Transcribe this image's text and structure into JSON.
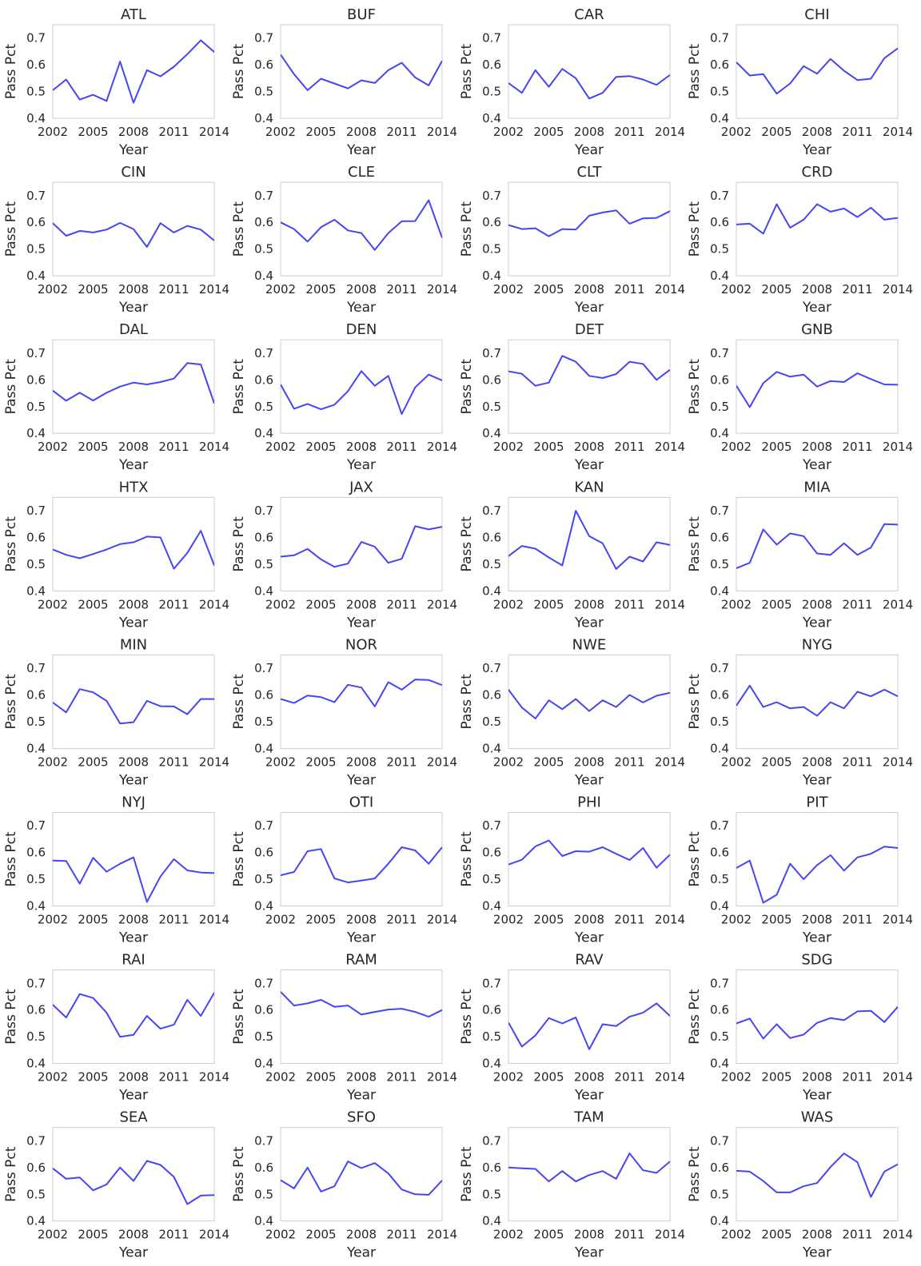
{
  "chart_data": {
    "type": "line",
    "layout": "small-multiples 8 rows x 4 columns",
    "xlabel": "Year",
    "ylabel": "Pass Pct",
    "xlim": [
      2002,
      2014
    ],
    "ylim": [
      0.4,
      0.75
    ],
    "xticks": [
      "2002",
      "2005",
      "2008",
      "2011",
      "2014"
    ],
    "yticks": [
      "0.4",
      "0.5",
      "0.6",
      "0.7"
    ],
    "grid": false,
    "line_color": "#4545f5",
    "x": [
      2002,
      2003,
      2004,
      2005,
      2006,
      2007,
      2008,
      2009,
      2010,
      2011,
      2012,
      2013,
      2014
    ],
    "panels": [
      {
        "title": "ATL",
        "values": [
          0.505,
          0.545,
          0.47,
          0.488,
          0.465,
          0.612,
          0.458,
          0.58,
          0.557,
          0.593,
          0.64,
          0.692,
          0.648
        ]
      },
      {
        "title": "BUF",
        "values": [
          0.638,
          0.565,
          0.505,
          0.548,
          0.53,
          0.512,
          0.542,
          0.532,
          0.58,
          0.608,
          0.553,
          0.523,
          0.615
        ]
      },
      {
        "title": "CAR",
        "values": [
          0.532,
          0.495,
          0.58,
          0.518,
          0.585,
          0.55,
          0.474,
          0.495,
          0.555,
          0.558,
          0.545,
          0.525,
          0.562
        ]
      },
      {
        "title": "CHI",
        "values": [
          0.61,
          0.56,
          0.565,
          0.492,
          0.53,
          0.595,
          0.567,
          0.622,
          0.578,
          0.543,
          0.548,
          0.625,
          0.662
        ]
      },
      {
        "title": "CIN",
        "values": [
          0.597,
          0.55,
          0.568,
          0.562,
          0.573,
          0.598,
          0.575,
          0.508,
          0.597,
          0.562,
          0.587,
          0.573,
          0.532
        ]
      },
      {
        "title": "CLE",
        "values": [
          0.6,
          0.575,
          0.528,
          0.582,
          0.61,
          0.57,
          0.56,
          0.497,
          0.56,
          0.604,
          0.605,
          0.683,
          0.542
        ]
      },
      {
        "title": "CLT",
        "values": [
          0.59,
          0.575,
          0.578,
          0.548,
          0.575,
          0.573,
          0.625,
          0.637,
          0.645,
          0.595,
          0.615,
          0.617,
          0.642
        ]
      },
      {
        "title": "CRD",
        "values": [
          0.592,
          0.595,
          0.558,
          0.668,
          0.58,
          0.61,
          0.668,
          0.64,
          0.652,
          0.62,
          0.655,
          0.61,
          0.617
        ]
      },
      {
        "title": "DAL",
        "values": [
          0.56,
          0.522,
          0.552,
          0.523,
          0.552,
          0.575,
          0.59,
          0.583,
          0.592,
          0.605,
          0.663,
          0.658,
          0.512
        ]
      },
      {
        "title": "DEN",
        "values": [
          0.583,
          0.492,
          0.51,
          0.49,
          0.507,
          0.558,
          0.633,
          0.578,
          0.615,
          0.472,
          0.572,
          0.62,
          0.598
        ]
      },
      {
        "title": "DET",
        "values": [
          0.632,
          0.623,
          0.578,
          0.59,
          0.69,
          0.668,
          0.615,
          0.607,
          0.622,
          0.668,
          0.66,
          0.6,
          0.638
        ]
      },
      {
        "title": "GNB",
        "values": [
          0.578,
          0.498,
          0.588,
          0.63,
          0.612,
          0.62,
          0.575,
          0.596,
          0.592,
          0.625,
          0.603,
          0.583,
          0.582
        ]
      },
      {
        "title": "HTX",
        "values": [
          0.555,
          0.535,
          0.522,
          0.538,
          0.555,
          0.575,
          0.582,
          0.603,
          0.6,
          0.483,
          0.542,
          0.625,
          0.495
        ]
      },
      {
        "title": "JAX",
        "values": [
          0.528,
          0.533,
          0.557,
          0.518,
          0.49,
          0.502,
          0.583,
          0.565,
          0.505,
          0.52,
          0.642,
          0.63,
          0.64
        ]
      },
      {
        "title": "KAN",
        "values": [
          0.53,
          0.568,
          0.558,
          0.525,
          0.495,
          0.7,
          0.605,
          0.578,
          0.482,
          0.528,
          0.51,
          0.582,
          0.572
        ]
      },
      {
        "title": "MIA",
        "values": [
          0.485,
          0.505,
          0.63,
          0.573,
          0.615,
          0.605,
          0.54,
          0.535,
          0.578,
          0.535,
          0.562,
          0.65,
          0.648
        ]
      },
      {
        "title": "MIN",
        "values": [
          0.572,
          0.535,
          0.622,
          0.61,
          0.578,
          0.493,
          0.498,
          0.578,
          0.558,
          0.557,
          0.528,
          0.585,
          0.585
        ]
      },
      {
        "title": "NOR",
        "values": [
          0.585,
          0.57,
          0.598,
          0.592,
          0.573,
          0.638,
          0.628,
          0.557,
          0.648,
          0.62,
          0.658,
          0.656,
          0.637
        ]
      },
      {
        "title": "NWE",
        "values": [
          0.62,
          0.553,
          0.512,
          0.58,
          0.547,
          0.585,
          0.54,
          0.58,
          0.555,
          0.6,
          0.572,
          0.597,
          0.608
        ]
      },
      {
        "title": "NYG",
        "values": [
          0.56,
          0.635,
          0.555,
          0.573,
          0.55,
          0.555,
          0.522,
          0.573,
          0.55,
          0.612,
          0.595,
          0.62,
          0.595
        ]
      },
      {
        "title": "NYJ",
        "values": [
          0.57,
          0.568,
          0.483,
          0.58,
          0.528,
          0.558,
          0.582,
          0.415,
          0.51,
          0.575,
          0.533,
          0.525,
          0.523
        ]
      },
      {
        "title": "OTI",
        "values": [
          0.515,
          0.527,
          0.605,
          0.613,
          0.503,
          0.488,
          0.495,
          0.503,
          0.558,
          0.62,
          0.608,
          0.558,
          0.62
        ]
      },
      {
        "title": "PHI",
        "values": [
          0.555,
          0.573,
          0.623,
          0.645,
          0.587,
          0.605,
          0.603,
          0.62,
          0.595,
          0.572,
          0.617,
          0.543,
          0.592
        ]
      },
      {
        "title": "PIT",
        "values": [
          0.542,
          0.57,
          0.412,
          0.442,
          0.558,
          0.5,
          0.553,
          0.59,
          0.532,
          0.582,
          0.595,
          0.622,
          0.617
        ]
      },
      {
        "title": "RAI",
        "values": [
          0.62,
          0.572,
          0.66,
          0.645,
          0.59,
          0.5,
          0.507,
          0.578,
          0.53,
          0.545,
          0.638,
          0.578,
          0.665
        ]
      },
      {
        "title": "RAM",
        "values": [
          0.668,
          0.617,
          0.625,
          0.638,
          0.612,
          0.617,
          0.583,
          0.593,
          0.602,
          0.605,
          0.593,
          0.575,
          0.6
        ]
      },
      {
        "title": "RAV",
        "values": [
          0.553,
          0.463,
          0.505,
          0.57,
          0.55,
          0.572,
          0.453,
          0.547,
          0.54,
          0.575,
          0.59,
          0.625,
          0.578
        ]
      },
      {
        "title": "SDG",
        "values": [
          0.55,
          0.568,
          0.493,
          0.547,
          0.495,
          0.508,
          0.552,
          0.57,
          0.562,
          0.595,
          0.597,
          0.555,
          0.612
        ]
      },
      {
        "title": "SEA",
        "values": [
          0.597,
          0.558,
          0.563,
          0.515,
          0.537,
          0.6,
          0.55,
          0.625,
          0.61,
          0.565,
          0.463,
          0.495,
          0.497
        ]
      },
      {
        "title": "SFO",
        "values": [
          0.553,
          0.522,
          0.6,
          0.51,
          0.53,
          0.623,
          0.598,
          0.617,
          0.578,
          0.518,
          0.5,
          0.498,
          0.552
        ]
      },
      {
        "title": "TAM",
        "values": [
          0.6,
          0.597,
          0.595,
          0.548,
          0.587,
          0.548,
          0.572,
          0.587,
          0.558,
          0.653,
          0.59,
          0.58,
          0.623
        ]
      },
      {
        "title": "WAS",
        "values": [
          0.588,
          0.585,
          0.55,
          0.507,
          0.507,
          0.53,
          0.542,
          0.602,
          0.653,
          0.62,
          0.49,
          0.585,
          0.612
        ]
      }
    ]
  }
}
